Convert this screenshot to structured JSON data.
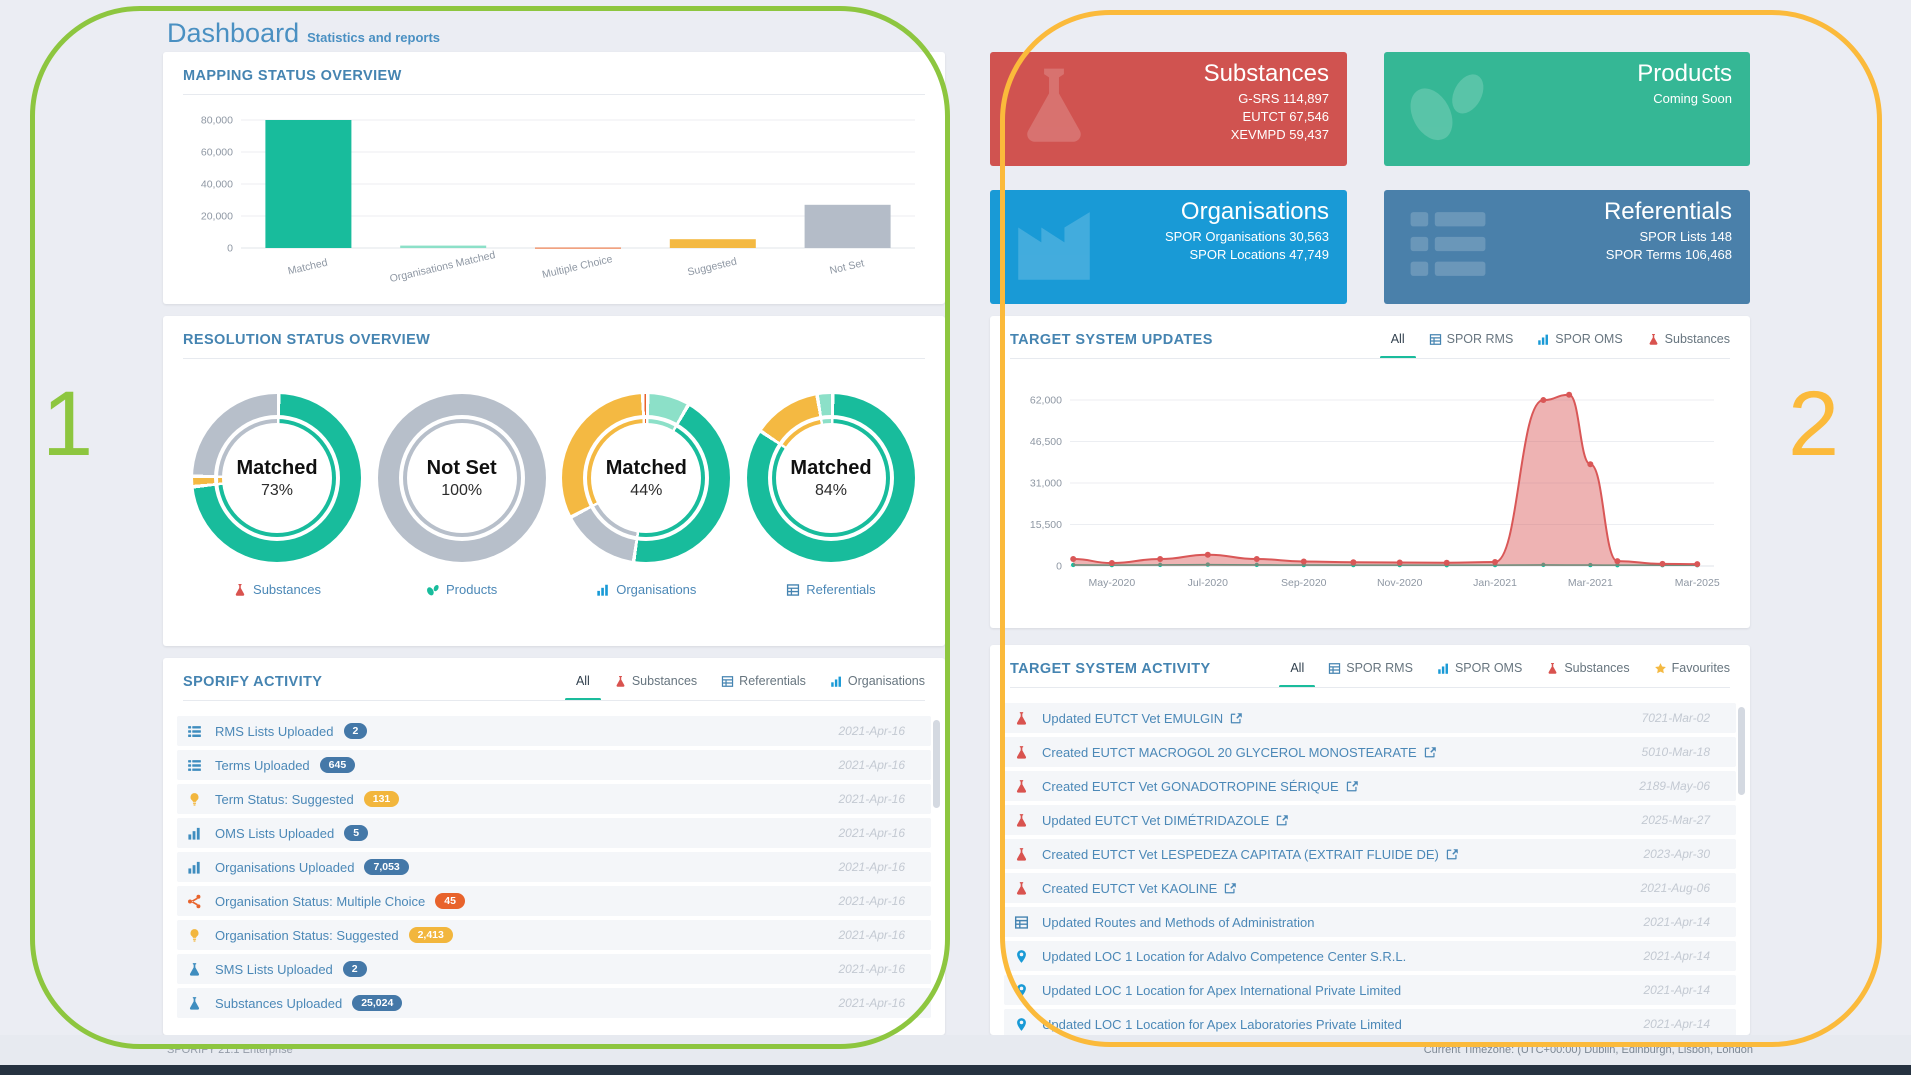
{
  "page": {
    "title": "Dashboard",
    "subtitle": "Statistics and reports",
    "footer_left": "SPORIFY 21.1 Enterprise",
    "footer_right": "Current Timezone: (UTC+00:00) Dublin, Edinburgh, Lisbon, London"
  },
  "annotations": {
    "left_label": "1",
    "left_color": "#8dc63f",
    "right_label": "2",
    "right_color": "#fbba3b"
  },
  "colors": {
    "accent_teal": "#18bc9c",
    "accent_yellow": "#f4b942",
    "accent_gray": "#b7bfca",
    "accent_orange": "#e8632c",
    "accent_red": "#d9534f",
    "link_blue": "#4b88b7",
    "title_blue": "#4584b1"
  },
  "summary_cards": [
    {
      "title": "Substances",
      "lines": [
        "G-SRS 114,897",
        "EUTCT 67,546",
        "XEVMPD 59,437"
      ],
      "color": "#d05350",
      "icon": "flask"
    },
    {
      "title": "Products",
      "lines": [
        "Coming Soon"
      ],
      "color": "#35b795",
      "icon": "pills"
    },
    {
      "title": "Organisations",
      "lines": [
        "SPOR Organisations 30,563",
        "SPOR Locations 47,749"
      ],
      "color": "#199ad6",
      "icon": "factory"
    },
    {
      "title": "Referentials",
      "lines": [
        "SPOR Lists 148",
        "SPOR Terms 106,468"
      ],
      "color": "#4a80aa",
      "icon": "list"
    }
  ],
  "mapping_status": {
    "title": "MAPPING STATUS OVERVIEW"
  },
  "resolution_status": {
    "title": "RESOLUTION STATUS OVERVIEW"
  },
  "sporify_activity": {
    "title": "SPORIFY ACTIVITY",
    "tabs": [
      {
        "label": "All",
        "active": true
      },
      {
        "label": "Substances",
        "icon": "flask",
        "icon_color": "#d9534f"
      },
      {
        "label": "Referentials",
        "icon": "table",
        "icon_color": "#4584b1"
      },
      {
        "label": "Organisations",
        "icon": "chart",
        "icon_color": "#199ad6"
      }
    ],
    "items": [
      {
        "icon": "list",
        "icon_color": "#3f8dbf",
        "text": "RMS Lists Uploaded",
        "badge": "2",
        "badge_color": "#4478a8",
        "date": "2021-Apr-16"
      },
      {
        "icon": "list",
        "icon_color": "#3f8dbf",
        "text": "Terms Uploaded",
        "badge": "645",
        "badge_color": "#4478a8",
        "date": "2021-Apr-16"
      },
      {
        "icon": "bulb",
        "icon_color": "#f2b63d",
        "text": "Term Status: Suggested",
        "badge": "131",
        "badge_color": "#f2b63d",
        "date": "2021-Apr-16"
      },
      {
        "icon": "chart",
        "icon_color": "#3f8dbf",
        "text": "OMS Lists Uploaded",
        "badge": "5",
        "badge_color": "#4478a8",
        "date": "2021-Apr-16"
      },
      {
        "icon": "chart",
        "icon_color": "#3f8dbf",
        "text": "Organisations Uploaded",
        "badge": "7,053",
        "badge_color": "#4478a8",
        "date": "2021-Apr-16"
      },
      {
        "icon": "share",
        "icon_color": "#e8632c",
        "text": "Organisation Status: Multiple Choice",
        "badge": "45",
        "badge_color": "#e8632c",
        "date": "2021-Apr-16"
      },
      {
        "icon": "bulb",
        "icon_color": "#f2b63d",
        "text": "Organisation Status: Suggested",
        "badge": "2,413",
        "badge_color": "#f2b63d",
        "date": "2021-Apr-16"
      },
      {
        "icon": "flask",
        "icon_color": "#3f8dbf",
        "text": "SMS Lists Uploaded",
        "badge": "2",
        "badge_color": "#4478a8",
        "date": "2021-Apr-16"
      },
      {
        "icon": "flask",
        "icon_color": "#3f8dbf",
        "text": "Substances Uploaded",
        "badge": "25,024",
        "badge_color": "#4478a8",
        "date": "2021-Apr-16"
      }
    ]
  },
  "target_updates": {
    "title": "TARGET SYSTEM UPDATES",
    "tabs": [
      {
        "label": "All",
        "active": true
      },
      {
        "label": "SPOR RMS",
        "icon": "table",
        "icon_color": "#4584b1"
      },
      {
        "label": "SPOR OMS",
        "icon": "chart",
        "icon_color": "#199ad6"
      },
      {
        "label": "Substances",
        "icon": "flask",
        "icon_color": "#d9534f"
      }
    ]
  },
  "target_activity": {
    "title": "TARGET SYSTEM ACTIVITY",
    "tabs": [
      {
        "label": "All",
        "active": true
      },
      {
        "label": "SPOR RMS",
        "icon": "table",
        "icon_color": "#4584b1"
      },
      {
        "label": "SPOR OMS",
        "icon": "chart",
        "icon_color": "#199ad6"
      },
      {
        "label": "Substances",
        "icon": "flask",
        "icon_color": "#d9534f"
      },
      {
        "label": "Favourites",
        "icon": "star",
        "icon_color": "#f4b942"
      }
    ],
    "items": [
      {
        "icon": "flask",
        "icon_color": "#d9534f",
        "text": "Updated EUTCT Vet EMULGIN",
        "external": true,
        "date": "7021-Mar-02"
      },
      {
        "icon": "flask",
        "icon_color": "#d9534f",
        "text": "Created EUTCT MACROGOL 20 GLYCEROL MONOSTEARATE",
        "external": true,
        "date": "5010-Mar-18"
      },
      {
        "icon": "flask",
        "icon_color": "#d9534f",
        "text": "Created EUTCT Vet GONADOTROPINE SÉRIQUE",
        "external": true,
        "date": "2189-May-06"
      },
      {
        "icon": "flask",
        "icon_color": "#d9534f",
        "text": "Updated EUTCT Vet DIMÉTRIDAZOLE",
        "external": true,
        "date": "2025-Mar-27"
      },
      {
        "icon": "flask",
        "icon_color": "#d9534f",
        "text": "Created EUTCT Vet LESPEDEZA CAPITATA (EXTRAIT FLUIDE DE)",
        "external": true,
        "date": "2023-Apr-30"
      },
      {
        "icon": "flask",
        "icon_color": "#d9534f",
        "text": "Created EUTCT Vet KAOLINE",
        "external": true,
        "date": "2021-Aug-06"
      },
      {
        "icon": "table",
        "icon_color": "#4584b1",
        "text": "Updated Routes and Methods of Administration",
        "external": false,
        "date": "2021-Apr-14"
      },
      {
        "icon": "pin",
        "icon_color": "#199ad6",
        "text": "Updated LOC 1 Location for Adalvo Competence Center S.R.L.",
        "external": false,
        "date": "2021-Apr-14"
      },
      {
        "icon": "pin",
        "icon_color": "#199ad6",
        "text": "Updated LOC 1 Location for Apex International Private Limited",
        "external": false,
        "date": "2021-Apr-14"
      },
      {
        "icon": "pin",
        "icon_color": "#199ad6",
        "text": "Updated LOC 1 Location for Apex Laboratories Private Limited",
        "external": false,
        "date": "2021-Apr-14"
      }
    ]
  },
  "chart_data": [
    {
      "id": "mapping_status_bar",
      "type": "bar",
      "title": "MAPPING STATUS OVERVIEW",
      "categories": [
        "Matched",
        "Organisations Matched",
        "Multiple Choice",
        "Suggested",
        "Not Set"
      ],
      "values": [
        80000,
        1500,
        250,
        5500,
        27000
      ],
      "colors": [
        "#18bc9c",
        "#8ce0c8",
        "#e8632c",
        "#f4b942",
        "#b4bcc8"
      ],
      "xlabel": "",
      "ylabel": "",
      "ylim": [
        0,
        80000
      ],
      "yticks": [
        0,
        20000,
        40000,
        60000,
        80000
      ],
      "grid": true,
      "legend": false
    },
    {
      "id": "resolution_donuts",
      "type": "pie",
      "title": "RESOLUTION STATUS OVERVIEW",
      "donuts": [
        {
          "center_label": "Matched",
          "center_value": "73%",
          "category": "Substances",
          "category_icon": "flask",
          "category_icon_color": "#d9534f",
          "segments": [
            {
              "label": "Matched",
              "pct": 73,
              "color": "#18bc9c"
            },
            {
              "label": "Suggested",
              "pct": 2,
              "color": "#f4b942"
            },
            {
              "label": "Not Set",
              "pct": 25,
              "color": "#b7bfca"
            }
          ]
        },
        {
          "center_label": "Not Set",
          "center_value": "100%",
          "category": "Products",
          "category_icon": "pills",
          "category_icon_color": "#18bc9c",
          "segments": [
            {
              "label": "Not Set",
              "pct": 100,
              "color": "#b7bfca"
            }
          ]
        },
        {
          "center_label": "Matched",
          "center_value": "44%",
          "category": "Organisations",
          "category_icon": "chart",
          "category_icon_color": "#199ad6",
          "segments": [
            {
              "label": "Organisations Matched",
              "pct": 8,
              "color": "#8ce0c8"
            },
            {
              "label": "Matched",
              "pct": 44,
              "color": "#18bc9c"
            },
            {
              "label": "Not Set",
              "pct": 15,
              "color": "#b7bfca"
            },
            {
              "label": "Suggested",
              "pct": 32,
              "color": "#f4b942"
            },
            {
              "label": "Multiple Choice",
              "pct": 1,
              "color": "#e8632c"
            }
          ]
        },
        {
          "center_label": "Matched",
          "center_value": "84%",
          "category": "Referentials",
          "category_icon": "table",
          "category_icon_color": "#4584b1",
          "segments": [
            {
              "label": "Matched",
              "pct": 84,
              "color": "#18bc9c"
            },
            {
              "label": "Suggested",
              "pct": 13,
              "color": "#f4b942"
            },
            {
              "label": "Organisations Matched",
              "pct": 3,
              "color": "#8ce0c8"
            }
          ]
        }
      ]
    },
    {
      "id": "target_system_updates",
      "type": "area",
      "title": "TARGET SYSTEM UPDATES",
      "x_ticks": [
        {
          "label": "May-2020",
          "f": 0.065
        },
        {
          "label": "Jul-2020",
          "f": 0.214
        },
        {
          "label": "Sep-2020",
          "f": 0.363
        },
        {
          "label": "Nov-2020",
          "f": 0.512
        },
        {
          "label": "Jan-2021",
          "f": 0.66
        },
        {
          "label": "Mar-2021",
          "f": 0.808
        },
        {
          "label": "Mar-2025",
          "f": 0.974
        }
      ],
      "yticks": [
        0,
        15500,
        31000,
        46500,
        62000
      ],
      "ymax": 68000,
      "grid": true,
      "series": [
        {
          "name": "SPOR updates",
          "color": "#18bc9c",
          "fill_opacity": 0.28,
          "points": [
            [
              0.005,
              400
            ],
            [
              0.065,
              350
            ],
            [
              0.14,
              420
            ],
            [
              0.214,
              520
            ],
            [
              0.29,
              420
            ],
            [
              0.363,
              360
            ],
            [
              0.44,
              350
            ],
            [
              0.512,
              340
            ],
            [
              0.585,
              310
            ],
            [
              0.66,
              350
            ],
            [
              0.735,
              420
            ],
            [
              0.808,
              360
            ],
            [
              0.85,
              320
            ],
            [
              0.92,
              300
            ],
            [
              0.974,
              300
            ]
          ]
        },
        {
          "name": "Substance updates",
          "color": "#d95757",
          "fill_opacity": 0.45,
          "points": [
            [
              0.005,
              2600
            ],
            [
              0.065,
              1100
            ],
            [
              0.14,
              2600
            ],
            [
              0.214,
              4200
            ],
            [
              0.29,
              2600
            ],
            [
              0.363,
              1700
            ],
            [
              0.44,
              1400
            ],
            [
              0.512,
              1300
            ],
            [
              0.585,
              1200
            ],
            [
              0.66,
              1500
            ],
            [
              0.735,
              62000
            ],
            [
              0.775,
              64000
            ],
            [
              0.808,
              38000
            ],
            [
              0.85,
              1800
            ],
            [
              0.92,
              800
            ],
            [
              0.974,
              700
            ]
          ]
        }
      ]
    }
  ]
}
